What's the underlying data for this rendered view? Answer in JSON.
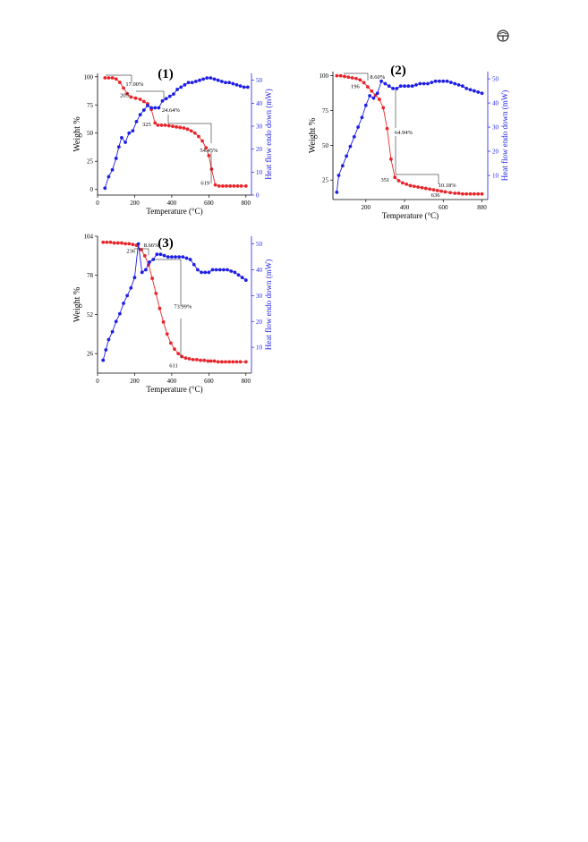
{
  "page_icon": "earth-symbol-icon",
  "colors": {
    "weight": "#e8262b",
    "heat": "#1f1fe6",
    "axis": "#000000",
    "annotation": "#000000"
  },
  "chart_data": [
    {
      "id": "1",
      "type": "line",
      "panel_label": "(1)",
      "xlabel": "Temperature (°C)",
      "ylabel_left": "Weight %",
      "ylabel_right": "Heat flow endo down (mW)",
      "xlim": [
        0,
        830
      ],
      "ylim_left": [
        -5,
        103
      ],
      "ylim_right": [
        0,
        53
      ],
      "x_ticks": [
        0,
        200,
        400,
        600,
        800
      ],
      "y_left_ticks": [
        0,
        25,
        50,
        75,
        100
      ],
      "y_right_ticks": [
        0,
        10,
        20,
        30,
        40,
        50
      ],
      "grid": false,
      "series": [
        {
          "axis": "left",
          "color": "#e8262b",
          "x": [
            40,
            60,
            80,
            100,
            120,
            140,
            160,
            180,
            205,
            230,
            250,
            270,
            290,
            310,
            325,
            345,
            365,
            385,
            405,
            425,
            445,
            465,
            485,
            505,
            525,
            545,
            565,
            585,
            600,
            615,
            635,
            655,
            675,
            695,
            715,
            735,
            755,
            775,
            800
          ],
          "y": [
            99,
            99,
            99,
            98,
            95,
            90,
            85,
            82,
            81,
            80,
            78,
            76,
            71,
            59,
            57,
            57,
            57,
            56.5,
            56,
            55.5,
            55,
            54.5,
            53.5,
            52,
            50,
            47,
            43,
            37,
            30,
            18,
            4,
            3,
            3,
            3,
            3,
            3,
            3,
            3,
            3
          ]
        },
        {
          "axis": "right",
          "color": "#1f1fe6",
          "x": [
            40,
            60,
            80,
            100,
            115,
            130,
            150,
            170,
            190,
            210,
            230,
            250,
            270,
            290,
            310,
            330,
            350,
            370,
            390,
            410,
            430,
            450,
            470,
            490,
            510,
            530,
            550,
            570,
            590,
            610,
            630,
            650,
            670,
            690,
            710,
            730,
            750,
            770,
            790,
            810
          ],
          "y": [
            3,
            8,
            11,
            16,
            21,
            25,
            23,
            27,
            28,
            32,
            35,
            37,
            39,
            38,
            38,
            38,
            41,
            42,
            43,
            44,
            46,
            47,
            48,
            49,
            49,
            49.5,
            50,
            50.5,
            51,
            51,
            50.5,
            50,
            49.5,
            49,
            49,
            48.5,
            48,
            47.5,
            47,
            47
          ]
        }
      ],
      "annotations": [
        {
          "text": "17.00%",
          "x": 200,
          "y": 92
        },
        {
          "text": "205",
          "x": 145,
          "y": 82
        },
        {
          "text": "24.64%",
          "x": 395,
          "y": 69
        },
        {
          "text": "325",
          "x": 265,
          "y": 56
        },
        {
          "text": "54.45%",
          "x": 600,
          "y": 33
        },
        {
          "text": "619",
          "x": 580,
          "y": 4
        }
      ]
    },
    {
      "id": "2",
      "type": "line",
      "panel_label": "(2)",
      "xlabel": "Temperature (°C)",
      "ylabel_left": "Weight %",
      "ylabel_right": "Heat flow endo down (mW)",
      "xlim": [
        30,
        830
      ],
      "ylim_left": [
        11,
        103
      ],
      "ylim_right": [
        0,
        53
      ],
      "x_ticks": [
        200,
        400,
        600,
        800
      ],
      "y_left_ticks": [
        25,
        50,
        75,
        100
      ],
      "y_right_ticks": [
        10,
        20,
        30,
        40,
        50
      ],
      "grid": false,
      "series": [
        {
          "axis": "left",
          "color": "#e8262b",
          "x": [
            50,
            70,
            90,
            110,
            130,
            150,
            170,
            190,
            210,
            230,
            250,
            270,
            290,
            310,
            330,
            350,
            370,
            390,
            410,
            430,
            450,
            470,
            490,
            510,
            530,
            550,
            570,
            590,
            610,
            636,
            660,
            680,
            700,
            720,
            740,
            760,
            780,
            800
          ],
          "y": [
            100,
            100,
            99.5,
            99,
            98.5,
            98,
            97,
            95,
            92,
            89,
            86,
            83,
            77,
            62,
            40,
            27,
            24.5,
            23,
            22,
            21,
            20.5,
            20,
            19.5,
            19,
            18.5,
            18,
            17.5,
            17,
            16.5,
            16,
            15.5,
            15.5,
            15,
            15,
            15,
            15,
            15,
            15
          ]
        },
        {
          "axis": "right",
          "color": "#1f1fe6",
          "x": [
            50,
            60,
            80,
            100,
            120,
            140,
            160,
            180,
            200,
            220,
            240,
            260,
            280,
            300,
            320,
            340,
            360,
            380,
            400,
            420,
            440,
            460,
            480,
            500,
            520,
            540,
            560,
            580,
            600,
            620,
            640,
            660,
            680,
            700,
            720,
            740,
            760,
            780,
            800
          ],
          "y": [
            3,
            10,
            14,
            18,
            22,
            26,
            30,
            34,
            39,
            43,
            42,
            44,
            49,
            48,
            47,
            46,
            46,
            47,
            47,
            47,
            47,
            47.5,
            48,
            48,
            48,
            48.5,
            49,
            49,
            49,
            49,
            48.5,
            48,
            47.5,
            47,
            46,
            45.5,
            45,
            44.5,
            44
          ]
        }
      ],
      "annotations": [
        {
          "text": "8.60%",
          "x": 260,
          "y": 98
        },
        {
          "text": "196",
          "x": 145,
          "y": 91
        },
        {
          "text": "64.94%",
          "x": 395,
          "y": 58
        },
        {
          "text": "351",
          "x": 300,
          "y": 24
        },
        {
          "text": "10.18%",
          "x": 620,
          "y": 20
        },
        {
          "text": "636",
          "x": 560,
          "y": 13
        }
      ]
    },
    {
      "id": "3",
      "type": "line",
      "panel_label": "(3)",
      "xlabel": "Temperature (°C)",
      "ylabel_left": "Weight %",
      "ylabel_right": "Heat flow endo down (mW)",
      "xlim": [
        0,
        830
      ],
      "ylim_left": [
        13,
        104
      ],
      "ylim_right": [
        0,
        53
      ],
      "x_ticks": [
        0,
        200,
        400,
        600,
        800
      ],
      "y_left_ticks": [
        26,
        52,
        78,
        104
      ],
      "y_right_ticks": [
        10,
        20,
        30,
        40,
        50
      ],
      "grid": false,
      "series": [
        {
          "axis": "left",
          "color": "#e8262b",
          "x": [
            30,
            50,
            70,
            90,
            110,
            130,
            150,
            170,
            190,
            210,
            236,
            255,
            275,
            295,
            315,
            335,
            355,
            375,
            395,
            415,
            435,
            455,
            475,
            495,
            515,
            535,
            555,
            575,
            595,
            611,
            630,
            650,
            670,
            690,
            710,
            730,
            750,
            770,
            800
          ],
          "y": [
            100,
            100,
            100,
            99.5,
            99.5,
            99.5,
            99,
            99,
            98.5,
            98,
            95,
            91,
            85,
            76,
            66,
            56,
            47,
            39,
            33,
            29,
            26,
            24,
            23,
            22.5,
            22,
            22,
            21.5,
            21.5,
            21,
            21,
            21,
            20.5,
            20.5,
            20.5,
            20.5,
            20.5,
            20.5,
            20.5,
            20.5
          ]
        },
        {
          "axis": "right",
          "color": "#1f1fe6",
          "x": [
            30,
            45,
            60,
            80,
            100,
            120,
            140,
            160,
            180,
            200,
            220,
            240,
            260,
            280,
            300,
            320,
            340,
            360,
            380,
            400,
            420,
            440,
            460,
            480,
            500,
            520,
            540,
            560,
            580,
            600,
            620,
            640,
            660,
            680,
            700,
            720,
            740,
            760,
            780,
            800
          ],
          "y": [
            5,
            9,
            13,
            16,
            20,
            23,
            27,
            30,
            33,
            37,
            50,
            39,
            40,
            43,
            44,
            46,
            46,
            45.5,
            45,
            45,
            45,
            45,
            45,
            44.5,
            44,
            42,
            40,
            39,
            39,
            39,
            40,
            40,
            40,
            40,
            40,
            39.5,
            39,
            38,
            37,
            36
          ]
        }
      ],
      "annotations": [
        {
          "text": "8.66%",
          "x": 290,
          "y": 97
        },
        {
          "text": "236",
          "x": 180,
          "y": 93
        },
        {
          "text": "73.99%",
          "x": 460,
          "y": 56
        },
        {
          "text": "611",
          "x": 410,
          "y": 17
        }
      ]
    }
  ]
}
